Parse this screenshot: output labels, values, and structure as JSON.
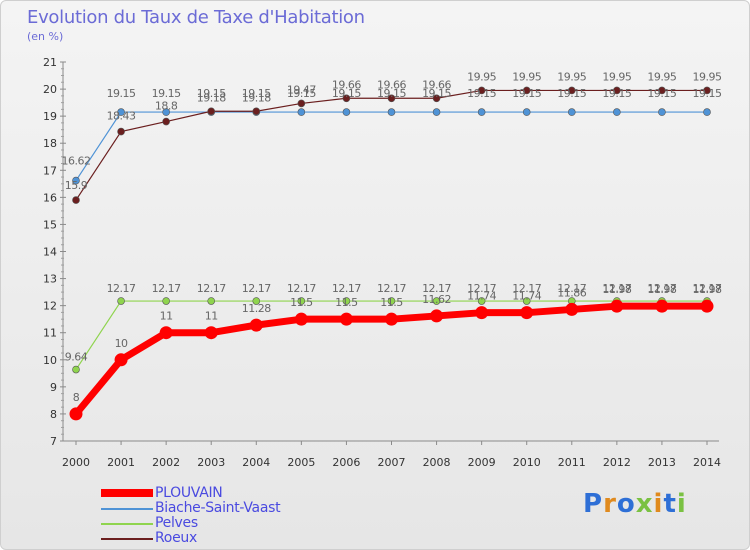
{
  "header": {
    "title": "Evolution du Taux de Taxe d'Habitation",
    "subtitle": "(en %)"
  },
  "logo": {
    "text": "Proxiti",
    "colors": [
      "#2e6fd6",
      "#e08a1e",
      "#2e6fd6",
      "#7ac142",
      "#e08a1e",
      "#2e6fd6",
      "#7ac142"
    ]
  },
  "chart_data": {
    "type": "line",
    "x": [
      "2000",
      "2001",
      "2002",
      "2003",
      "2004",
      "2005",
      "2006",
      "2007",
      "2008",
      "2009",
      "2010",
      "2011",
      "2012",
      "2013",
      "2014"
    ],
    "ylim": [
      7,
      21
    ],
    "yticks": [
      7,
      8,
      9,
      10,
      11,
      12,
      13,
      14,
      15,
      16,
      17,
      18,
      19,
      20,
      21
    ],
    "grid": false,
    "legend_position": "bottom-left",
    "series": [
      {
        "name": "PLOUVAIN",
        "color": "#ff0000",
        "values": [
          8,
          10,
          11,
          11,
          11.28,
          11.5,
          11.5,
          11.5,
          11.62,
          11.74,
          11.74,
          11.86,
          11.98,
          11.98,
          11.98
        ],
        "labels": [
          "8",
          "10",
          "11",
          "11",
          "11.28",
          "11.5",
          "11.5",
          "11.5",
          "11.62",
          "11.74",
          "11.74",
          "11.86",
          "11.98",
          "11.98",
          "11.98"
        ]
      },
      {
        "name": "Biache-Saint-Vaast",
        "color": "#4f93d6",
        "values": [
          16.62,
          19.15,
          19.15,
          19.15,
          19.15,
          19.15,
          19.15,
          19.15,
          19.15,
          19.15,
          19.15,
          19.15,
          19.15,
          19.15,
          19.15
        ],
        "labels": [
          "16.62",
          "19.15",
          "19.15",
          "19.15",
          "19.15",
          "19.15",
          "19.15",
          "19.15",
          "19.15",
          "19.15",
          "19.15",
          "19.15",
          "19.15",
          "19.15",
          "19.15"
        ]
      },
      {
        "name": "Pelves",
        "color": "#8fd44e",
        "values": [
          9.64,
          12.17,
          12.17,
          12.17,
          12.17,
          12.17,
          12.17,
          12.17,
          12.17,
          12.17,
          12.17,
          12.17,
          12.17,
          12.17,
          12.17
        ],
        "labels": [
          "9.64",
          "12.17",
          "12.17",
          "12.17",
          "12.17",
          "12.17",
          "12.17",
          "12.17",
          "12.17",
          "12.17",
          "12.17",
          "12.17",
          "12.17",
          "12.17",
          "12.17"
        ]
      },
      {
        "name": "Roeux",
        "color": "#6b1f1f",
        "values": [
          15.9,
          18.43,
          18.8,
          19.18,
          19.18,
          19.47,
          19.66,
          19.66,
          19.66,
          19.95,
          19.95,
          19.95,
          19.95,
          19.95,
          19.95
        ],
        "labels": [
          "15.9",
          "18.43",
          "18.8",
          "19.18",
          "19.18",
          "19.47",
          "19.66",
          "19.66",
          "19.66",
          "19.95",
          "19.95",
          "19.95",
          "19.95",
          "19.95",
          "19.95"
        ]
      }
    ]
  }
}
